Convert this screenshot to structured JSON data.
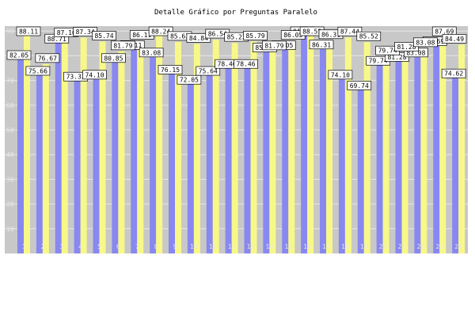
{
  "chart_data": {
    "type": "bar",
    "title": "Detalle Gráfico por Preguntas Paralelo",
    "categories": [
      "1",
      "2",
      "3",
      "4",
      "5",
      "6",
      "7",
      "8",
      "9",
      "10",
      "11",
      "12",
      "13",
      "14",
      "15",
      "16",
      "17",
      "18",
      "19",
      "20",
      "21",
      "22",
      "23",
      "24"
    ],
    "y_ticks": [
      "10",
      "20",
      "30",
      "40",
      "50",
      "60",
      "70",
      "80",
      "90"
    ],
    "ylim": [
      0,
      92
    ],
    "grid": true,
    "series": [
      {
        "values": [
          82.05,
          75.66,
          88.71,
          73.33,
          74.1,
          80.85,
          86.11,
          83.08,
          76.15,
          72.05,
          75.64,
          78.46,
          78.46,
          85.1,
          86.05,
          91.92,
          86.31,
          74.1,
          69.74,
          79.74,
          81.28,
          83.08,
          87.69,
          74.62
        ],
        "labels": [
          "82.05",
          "75.66",
          "88.71",
          "73.33",
          "74.10",
          "80.85",
          "86.11",
          "83.08",
          "76.15",
          "72.05",
          "75.64",
          "78.46",
          "78.46",
          "85.10",
          "86.05",
          "91.92",
          "86.31",
          "74.10",
          "69.74",
          "79.74",
          "81.28",
          "83.08",
          "87.69",
          "74.62"
        ]
      },
      {
        "values": [
          88.11,
          76.67,
          87.1,
          87.34,
          85.74,
          81.79,
          86.11,
          88.24,
          85.63,
          84.84,
          86.54,
          85.23,
          85.79,
          81.79,
          86.05,
          88.55,
          86.31,
          87.44,
          85.52,
          79.74,
          81.28,
          83.08,
          87.69,
          84.49
        ],
        "labels": [
          "88.11",
          "76.67",
          "87.10",
          "87.34",
          "85.74",
          "81.79",
          "86.11",
          "88.24",
          "85.63",
          "84.84",
          "86.54",
          "85.23",
          "85.79",
          "81.79",
          "86.05",
          "88.55",
          "86.31",
          "87.44",
          "85.52",
          "79.74",
          "81.28",
          "83.08",
          "87.69",
          "84.49"
        ]
      }
    ],
    "colors": {
      "series1": "#8888f0",
      "series2": "#f8f888",
      "plot_bg": "#c8c8c8",
      "grid": "#e6e6e6",
      "label_bg": "#ffffff"
    }
  }
}
